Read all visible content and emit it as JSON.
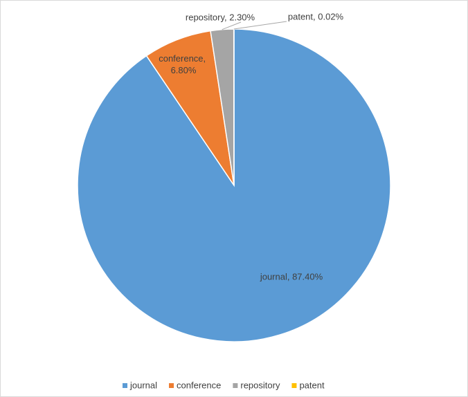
{
  "chart_data": {
    "type": "pie",
    "categories": [
      "journal",
      "conference",
      "repository",
      "patent"
    ],
    "values": [
      87.4,
      6.8,
      2.3,
      0.02
    ],
    "value_labels": [
      "journal, 87.40%",
      "conference, 6.80%",
      "repository, 2.30%",
      "patent, 0.02%"
    ],
    "colors": [
      "#5b9bd5",
      "#ed7d31",
      "#a5a5a5",
      "#ffc000"
    ],
    "legend": "bottom"
  }
}
